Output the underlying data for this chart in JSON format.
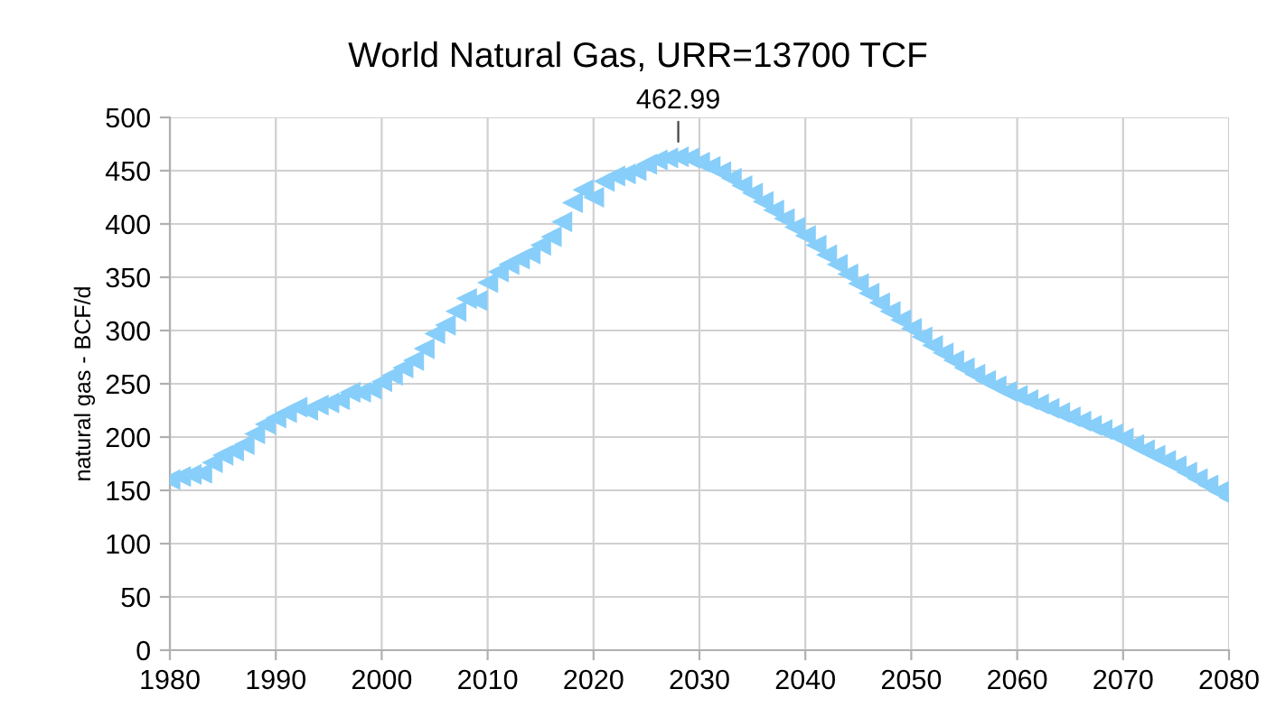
{
  "chart_data": {
    "type": "scatter",
    "title": "World Natural Gas, URR=13700 TCF",
    "ylabel": "natural gas - BCF/d",
    "x": [
      1980,
      1981,
      1982,
      1983,
      1984,
      1985,
      1986,
      1987,
      1988,
      1989,
      1990,
      1991,
      1992,
      1993,
      1994,
      1995,
      1996,
      1997,
      1998,
      1999,
      2000,
      2001,
      2002,
      2003,
      2004,
      2005,
      2006,
      2007,
      2008,
      2009,
      2010,
      2011,
      2012,
      2013,
      2014,
      2015,
      2016,
      2017,
      2018,
      2019,
      2020,
      2021,
      2022,
      2023,
      2024,
      2025,
      2026,
      2027,
      2028,
      2029,
      2030,
      2031,
      2032,
      2033,
      2034,
      2035,
      2036,
      2037,
      2038,
      2039,
      2040,
      2041,
      2042,
      2043,
      2044,
      2045,
      2046,
      2047,
      2048,
      2049,
      2050,
      2051,
      2052,
      2053,
      2054,
      2055,
      2056,
      2057,
      2058,
      2059,
      2060,
      2061,
      2062,
      2063,
      2064,
      2065,
      2066,
      2067,
      2068,
      2069,
      2070,
      2071,
      2072,
      2073,
      2074,
      2075,
      2076,
      2077,
      2078,
      2079,
      2080
    ],
    "values": [
      160,
      163,
      165,
      166,
      176,
      183,
      187,
      193,
      203,
      212,
      218,
      223,
      228,
      225,
      230,
      232,
      235,
      242,
      242,
      245,
      252,
      258,
      265,
      272,
      283,
      297,
      305,
      318,
      330,
      328,
      345,
      355,
      362,
      367,
      372,
      380,
      388,
      402,
      420,
      432,
      425,
      440,
      445,
      447,
      450,
      456,
      460,
      462,
      462.99,
      462,
      458,
      454,
      449,
      443,
      436,
      429,
      421,
      413,
      405,
      397,
      389,
      380,
      371,
      362,
      353,
      344,
      335,
      326,
      318,
      310,
      302,
      294,
      286,
      279,
      272,
      265,
      259,
      253,
      248,
      243,
      239,
      235,
      231,
      227,
      223,
      219,
      215,
      211,
      207,
      203,
      199,
      193,
      188,
      183,
      178,
      173,
      167,
      161,
      155,
      149,
      143
    ],
    "color": "#87cefa",
    "marker": "triangle",
    "annotations": [
      {
        "text": "462.99",
        "x": 2028,
        "y": 462.99
      }
    ],
    "xlim": [
      1980,
      2080
    ],
    "xticks": [
      1980,
      1990,
      2000,
      2010,
      2020,
      2030,
      2040,
      2050,
      2060,
      2070,
      2080
    ],
    "ylim": [
      0,
      500
    ],
    "yticks": [
      0,
      50,
      100,
      150,
      200,
      250,
      300,
      350,
      400,
      450,
      500
    ],
    "grid": true
  }
}
